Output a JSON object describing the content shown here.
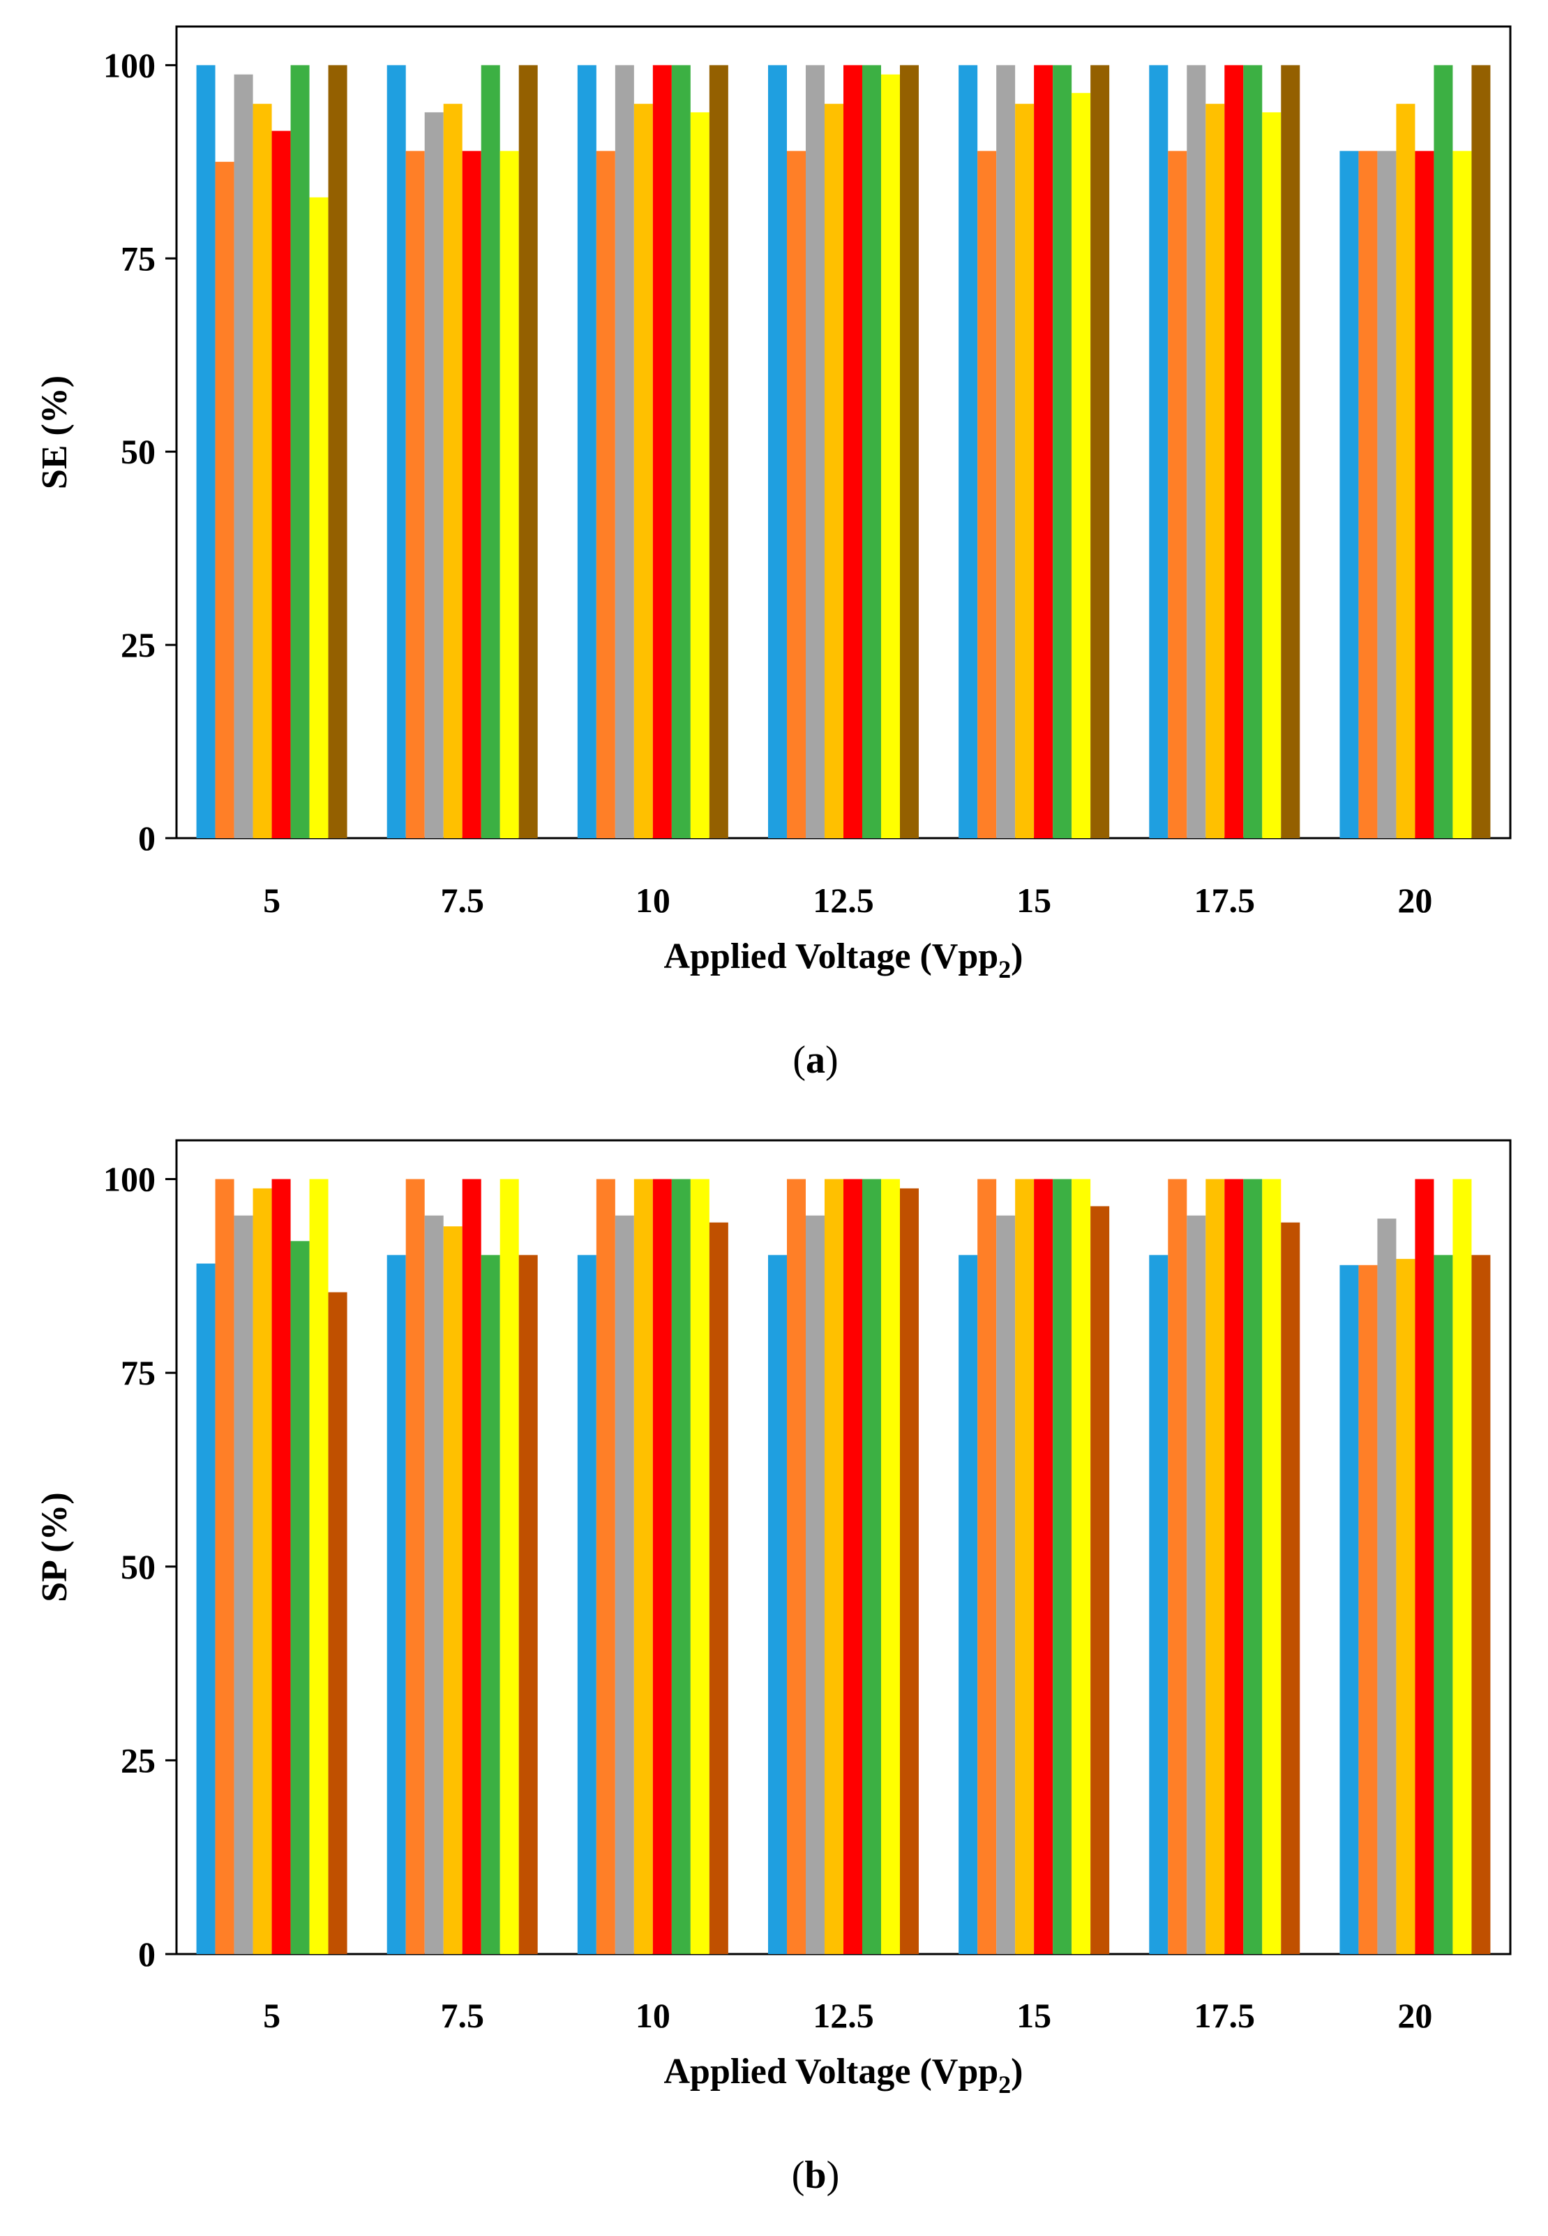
{
  "series_colors": [
    "#1f9fe0",
    "#ff7f27",
    "#a5a5a5",
    "#ffc000",
    "#ff0000",
    "#3cb043",
    "#ffff00",
    "#946000"
  ],
  "panel_b_colors": [
    "#1f9fe0",
    "#ff7f27",
    "#a5a5a5",
    "#ffc000",
    "#ff0000",
    "#3cb043",
    "#ffff00",
    "#c05000"
  ],
  "chart_data": [
    {
      "type": "bar",
      "panel": "a",
      "caption_open": "(",
      "caption_letter": "a",
      "caption_close": ")",
      "xlabel": "Applied Voltage  (Vpp",
      "xlabel_sub": "2",
      "xlabel_close": ")",
      "ylabel": "SE (%)",
      "ylim": [
        0,
        105
      ],
      "yticks": [
        0,
        25,
        50,
        75,
        100
      ],
      "categories": [
        "5",
        "7.5",
        "10",
        "12.5",
        "15",
        "17.5",
        "20"
      ],
      "series": [
        {
          "values": [
            100,
            100,
            100,
            100,
            100,
            100,
            88.9
          ]
        },
        {
          "values": [
            87.5,
            88.9,
            88.9,
            88.9,
            88.9,
            88.9,
            88.9
          ]
        },
        {
          "values": [
            98.8,
            93.9,
            100,
            100,
            100,
            100,
            88.9
          ]
        },
        {
          "values": [
            95.0,
            95.0,
            95.0,
            95.0,
            95.0,
            95.0,
            95.0
          ]
        },
        {
          "values": [
            91.5,
            88.9,
            100,
            100,
            100,
            100,
            88.9
          ]
        },
        {
          "values": [
            100,
            100,
            100,
            100,
            100,
            100,
            100
          ]
        },
        {
          "values": [
            82.9,
            88.9,
            93.9,
            98.8,
            96.4,
            93.9,
            88.9
          ]
        },
        {
          "values": [
            100,
            100,
            100,
            100,
            100,
            100,
            100
          ]
        }
      ]
    },
    {
      "type": "bar",
      "panel": "b",
      "caption_open": "(",
      "caption_letter": "b",
      "caption_close": ")",
      "xlabel": "Applied Voltage  (Vpp",
      "xlabel_sub": "2",
      "xlabel_close": ")",
      "ylabel": "SP (%)",
      "ylim": [
        0,
        105
      ],
      "yticks": [
        0,
        25,
        50,
        75,
        100
      ],
      "categories": [
        "5",
        "7.5",
        "10",
        "12.5",
        "15",
        "17.5",
        "20"
      ],
      "series": [
        {
          "values": [
            89.1,
            90.2,
            90.2,
            90.2,
            90.2,
            90.2,
            88.9
          ]
        },
        {
          "values": [
            100,
            100,
            100,
            100,
            100,
            100,
            88.9
          ]
        },
        {
          "values": [
            95.3,
            95.3,
            95.3,
            95.3,
            95.3,
            95.3,
            94.9
          ]
        },
        {
          "values": [
            98.8,
            93.9,
            100,
            100,
            100,
            100,
            89.7
          ]
        },
        {
          "values": [
            100,
            100,
            100,
            100,
            100,
            100,
            100
          ]
        },
        {
          "values": [
            92.0,
            90.2,
            100,
            100,
            100,
            100,
            90.2
          ]
        },
        {
          "values": [
            100,
            100,
            100,
            100,
            100,
            100,
            100
          ]
        },
        {
          "values": [
            85.4,
            90.2,
            94.4,
            98.8,
            96.5,
            94.4,
            90.2
          ]
        }
      ]
    }
  ]
}
